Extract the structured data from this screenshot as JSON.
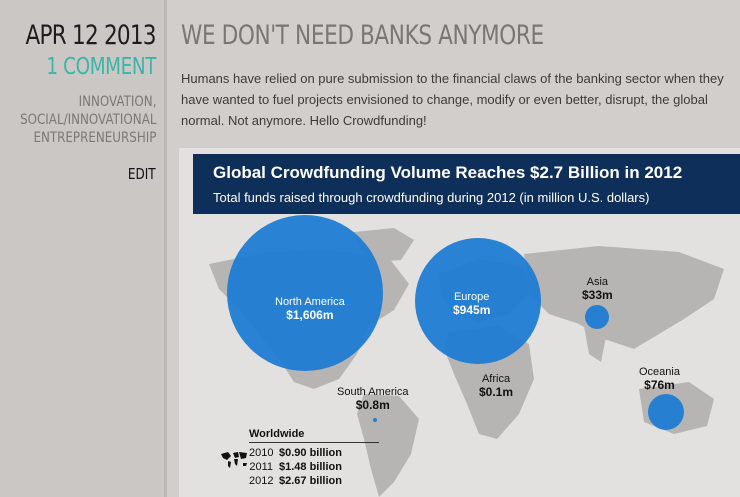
{
  "post": {
    "date": "APR 12 2013",
    "comments": "1 COMMENT",
    "categories": [
      "INNOVATION,",
      "SOCIAL/INNOVATIONAL",
      "ENTREPRENEURSHIP"
    ],
    "edit_label": "EDIT",
    "title": "WE DON'T NEED BANKS ANYMORE",
    "intro": "Humans have relied on pure submission to the financial claws of the banking sector when they have wanted to fuel projects envisioned to change, modify or even better, disrupt, the global normal. Not anymore. Hello Crowdfunding!"
  },
  "infographic": {
    "title": "Global Crowdfunding Volume Reaches $2.7 Billion in 2012",
    "subtitle": "Total funds raised through crowdfunding during 2012 (in million U.S. dollars)",
    "regions": [
      {
        "name": "North America",
        "value": "$1,606m"
      },
      {
        "name": "Europe",
        "value": "$945m"
      },
      {
        "name": "Asia",
        "value": "$33m"
      },
      {
        "name": "Oceania",
        "value": "$76m"
      },
      {
        "name": "Africa",
        "value": "$0.1m"
      },
      {
        "name": "South America",
        "value": "$0.8m"
      }
    ],
    "worldwide": {
      "heading": "Worldwide",
      "rows": [
        {
          "year": "2010",
          "value": "$0.90 billion"
        },
        {
          "year": "2011",
          "value": "$1.48 billion"
        },
        {
          "year": "2012",
          "value": "$2.67 billion"
        }
      ]
    },
    "accent_color": "#1b7bd2",
    "header_color": "#0e2f5a"
  }
}
